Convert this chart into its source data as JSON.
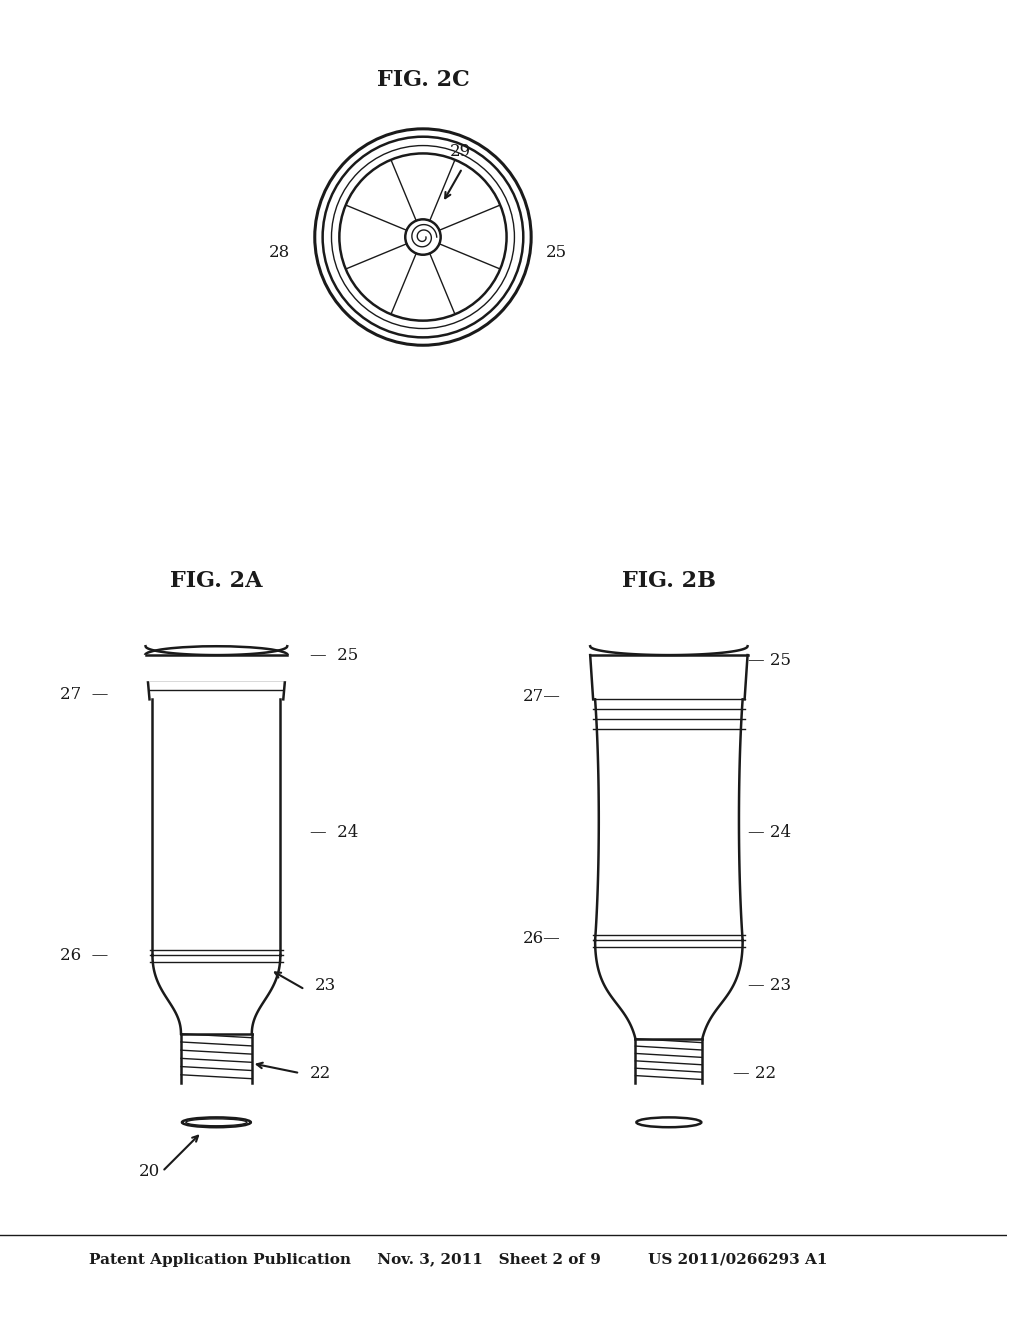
{
  "bg_color": "#ffffff",
  "line_color": "#1a1a1a",
  "header_text": "Patent Application Publication     Nov. 3, 2011   Sheet 2 of 9         US 2011/0266293 A1",
  "fig2a_label": "FIG. 2A",
  "fig2b_label": "FIG. 2B",
  "fig2c_label": "FIG. 2C",
  "label_20": "20",
  "label_22": "22",
  "label_23": "23",
  "label_24": "24",
  "label_25": "25",
  "label_26": "26",
  "label_27": "27",
  "label_28": "28",
  "label_29": "29"
}
